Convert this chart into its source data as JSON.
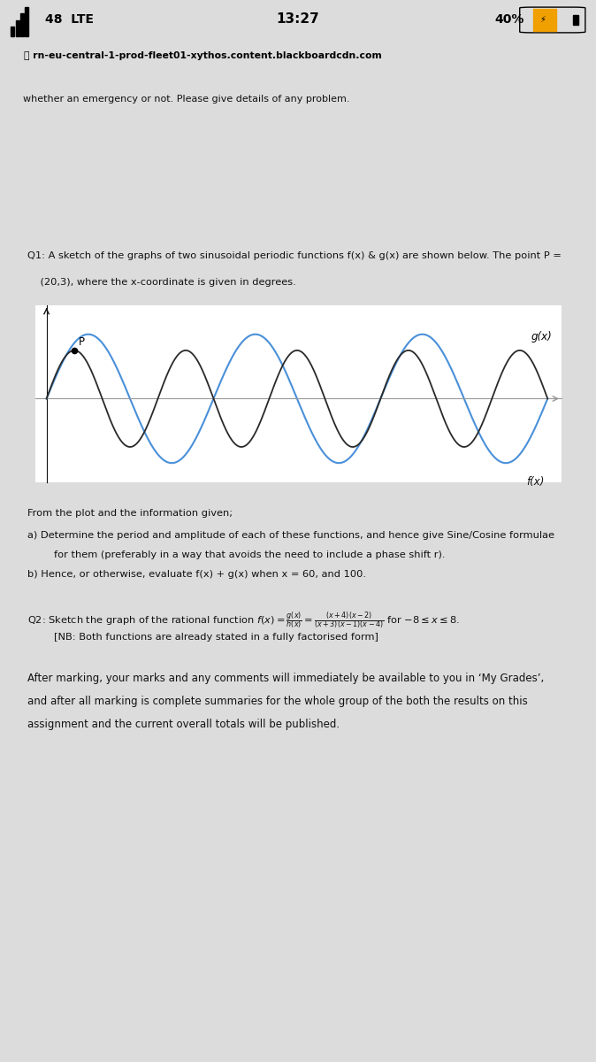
{
  "status_signal": ".ul 48  LTE",
  "status_time": "13:27",
  "status_battery": "40%",
  "url": "rn-eu-central-1-prod-fleet01-xythos.content.blackboardcdn.com",
  "card1_text": "whether an emergency or not. Please give details of any problem.",
  "q1_line1": "Q1: A sketch of the graphs of two sinusoidal periodic functions f(x) & g(x) are shown below. The point P =",
  "q1_line2": "    (20,3), where the x-coordinate is given in degrees.",
  "gx_amp": 3,
  "gx_period": 80,
  "fx_amp": 4,
  "fx_period": 120,
  "gx_color": "#2a2a2a",
  "fx_color": "#4a90d9",
  "from_text": "From the plot and the information given;",
  "part_a1": "a) Determine the period and amplitude of each of these functions, and hence give Sine/Cosine formulae",
  "part_a2": "      for them (preferably in a way that avoids the need to include a phase shift r).",
  "part_b": "b) Hence, or otherwise, evaluate f(x) + g(x) when x = 60, and 100.",
  "q2_line": "Q2: Sketch the graph of the rational function f(x) =",
  "nb_line": "[NB: Both functions are already stated in a fully factorised form]",
  "after1": "After marking, your marks and any comments will immediately be available to you in ‘My Grades’,",
  "after2": "and after all marking is complete summaries for the whole group of the both the results on this",
  "after3": "assignment and the current overall totals will be published.",
  "bg": "#dcdcdc",
  "white": "#ffffff",
  "dark": "#111111",
  "gray_line": "#999999"
}
